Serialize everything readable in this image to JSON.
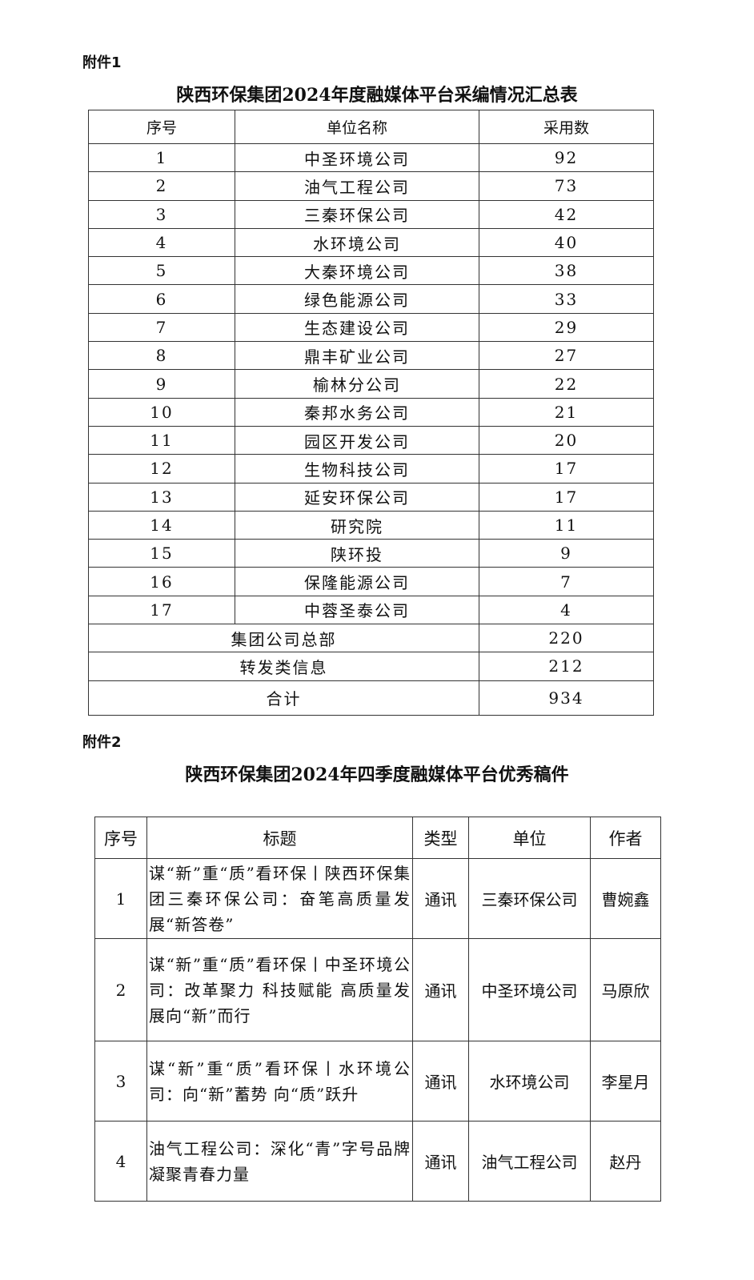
{
  "attachment1": {
    "label": "附件1",
    "title": "陕西环保集团2024年度融媒体平台采编情况汇总表",
    "headers": [
      "序号",
      "单位名称",
      "采用数"
    ],
    "rows": [
      [
        "1",
        "中圣环境公司",
        "92"
      ],
      [
        "2",
        "油气工程公司",
        "73"
      ],
      [
        "3",
        "三秦环保公司",
        "42"
      ],
      [
        "4",
        "水环境公司",
        "40"
      ],
      [
        "5",
        "大秦环境公司",
        "38"
      ],
      [
        "6",
        "绿色能源公司",
        "33"
      ],
      [
        "7",
        "生态建设公司",
        "29"
      ],
      [
        "8",
        "鼎丰矿业公司",
        "27"
      ],
      [
        "9",
        "榆林分公司",
        "22"
      ],
      [
        "10",
        "秦邦水务公司",
        "21"
      ],
      [
        "11",
        "园区开发公司",
        "20"
      ],
      [
        "12",
        "生物科技公司",
        "17"
      ],
      [
        "13",
        "延安环保公司",
        "17"
      ],
      [
        "14",
        "研究院",
        "11"
      ],
      [
        "15",
        "陕环投",
        "9"
      ],
      [
        "16",
        "保隆能源公司",
        "7"
      ],
      [
        "17",
        "中蓉圣泰公司",
        "4"
      ]
    ],
    "summary_rows": [
      [
        "集团公司总部",
        "220"
      ],
      [
        "转发类信息",
        "212"
      ],
      [
        "合计",
        "934"
      ]
    ]
  },
  "attachment2": {
    "label": "附件2",
    "title": "陕西环保集团2024年四季度融媒体平台优秀稿件",
    "headers": [
      "序号",
      "标题",
      "类型",
      "单位",
      "作者"
    ],
    "rows": [
      [
        "1",
        "谋“新”重“质”看环保丨陕西环保集团三秦环保公司：奋笔高质量发展“新答卷”",
        "通讯",
        "三秦环保公司",
        "曹婉鑫"
      ],
      [
        "2",
        "谋“新”重“质”看环保丨中圣环境公司：改革聚力 科技赋能 高质量发展向“新”而行",
        "通讯",
        "中圣环境公司",
        "马原欣"
      ],
      [
        "3",
        "谋“新”重“质”看环保丨水环境公司：向“新”蓄势 向“质”跃升",
        "通讯",
        "水环境公司",
        "李星月"
      ],
      [
        "4",
        "油气工程公司：深化“青”字号品牌 凝聚青春力量",
        "通讯",
        "油气工程公司",
        "赵丹"
      ]
    ]
  }
}
